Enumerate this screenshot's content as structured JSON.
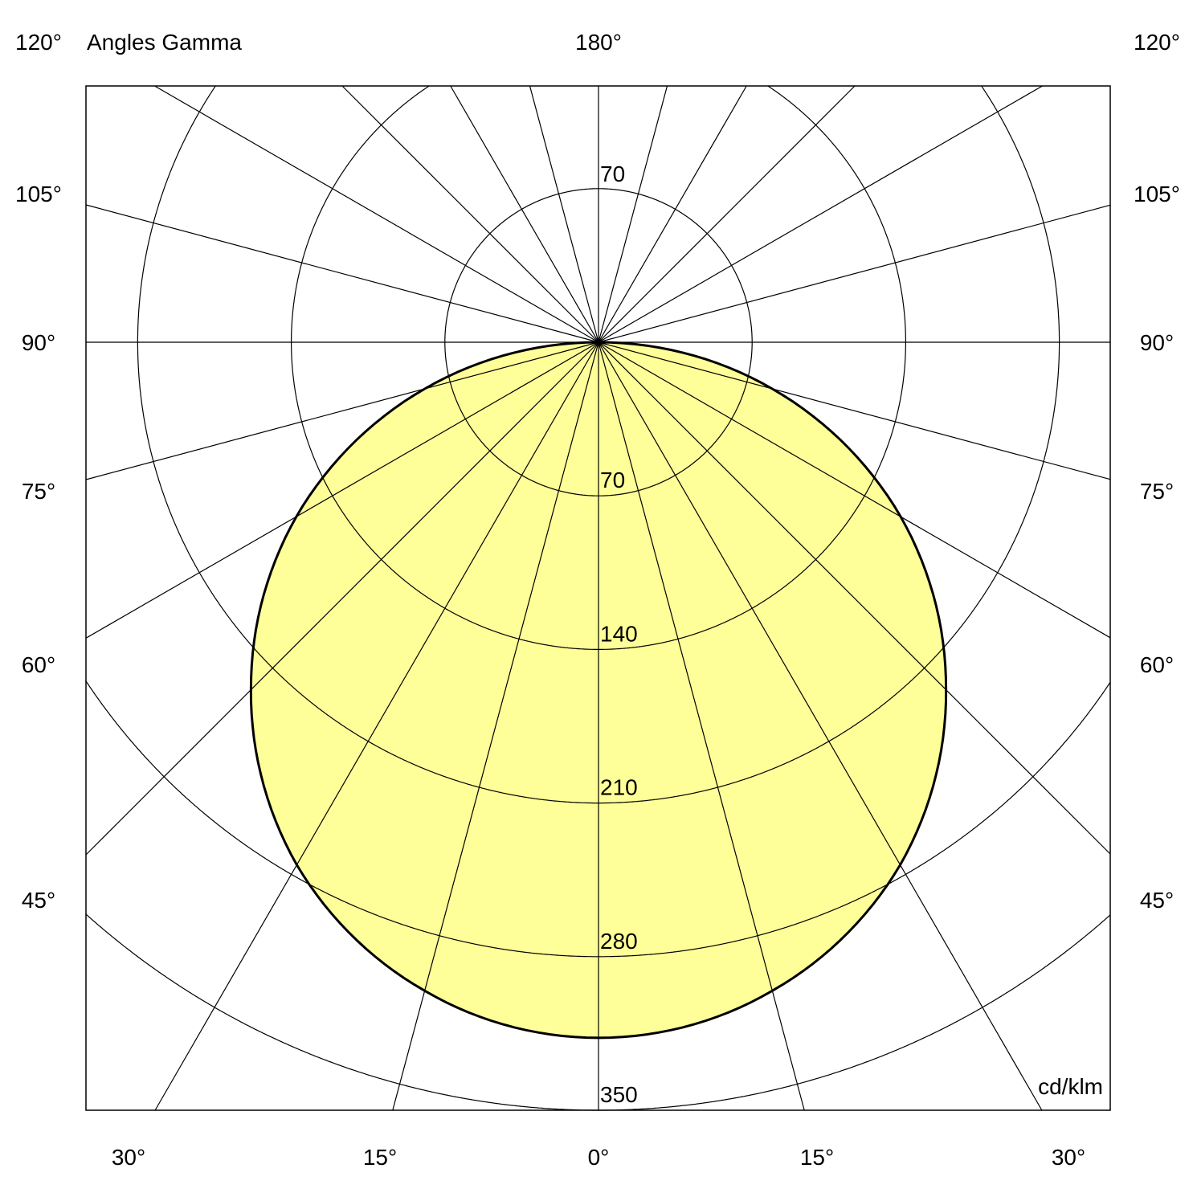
{
  "chart_data": {
    "type": "polar",
    "title": "Angles Gamma",
    "unit": "cd/klm",
    "radial_ticks": [
      70,
      140,
      210,
      280,
      350
    ],
    "radial_max": 350,
    "top_ring_label": "70",
    "angle_step_deg": 15,
    "left_labels": [
      "120°",
      "105°",
      "90°",
      "75°",
      "60°",
      "45°"
    ],
    "right_labels": [
      "120°",
      "105°",
      "90°",
      "75°",
      "60°",
      "45°"
    ],
    "top_label": "180°",
    "bottom_labels": [
      "30°",
      "15°",
      "0°",
      "15°",
      "30°"
    ],
    "curve_fill": "#ffff99",
    "series": [
      {
        "gamma_deg": [
          0,
          15,
          30,
          45,
          60,
          75,
          90
        ],
        "values": [
          317,
          306,
          275,
          224,
          159,
          82,
          0
        ]
      }
    ],
    "grid": true
  }
}
